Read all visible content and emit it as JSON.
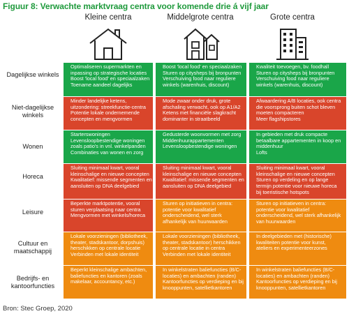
{
  "title": "Figuur 8: Verwachte marktvraag centra voor komende drie á vijf jaar",
  "columns": [
    {
      "label": "Kleine centra",
      "icon": "house-icon"
    },
    {
      "label": "Middelgrote centra",
      "icon": "townhouse-icon"
    },
    {
      "label": "Grote centra",
      "icon": "apartment-building-icon"
    }
  ],
  "rows": [
    {
      "label": "Dagelijkse winkels",
      "cells": [
        {
          "color": "green",
          "lines": [
            "Optimaliseren supermarkten en",
            "inpassing op strategische locaties",
            "Boost 'local food' en speciaalzaken",
            "Toename aandeel dagelijks"
          ]
        },
        {
          "color": "green",
          "lines": [
            "Boost 'local food' en speciaalzaken",
            "Sturen op citysheps bij bronpunten",
            "Verschuiving food naar reguliere",
            "winkels (warenhuis, discount)"
          ]
        },
        {
          "color": "green",
          "lines": [
            "Kwaliteit toevoegen, bv. foodhall",
            "Sturen op citysheps bij bronpunten",
            "Verschuiving food naar reguliere",
            "winkels (warenhuis, discount)"
          ]
        }
      ]
    },
    {
      "label": "Niet-dagelijkse winkels",
      "cells": [
        {
          "color": "red",
          "lines": [
            "Minder landelijke ketens,",
            "uitzondering: streekfunctie-centra",
            "Potentie lokale ondernemende",
            "concepten en mengvormen"
          ]
        },
        {
          "color": "red",
          "lines": [
            "Mode zwaar onder druk, grote",
            "afschaling verwacht, ook op A1/A2",
            "Ketens met financiële slagkracht",
            "dominanter in straatbeeld"
          ]
        },
        {
          "color": "red",
          "lines": [
            "Afwaardering A/B locaties, ook centra",
            "die voorsprong buiten schot bleven",
            "moeten compacteren",
            "Meer flagshipstores"
          ]
        }
      ]
    },
    {
      "label": "Wonen",
      "cells": [
        {
          "color": "green",
          "lines": [
            "Starterswoningen",
            "Levensloopbestendige woningen",
            "zoals patio's in vnl. winkelpanden",
            "Combinaties van wonen en zorg"
          ]
        },
        {
          "color": "green",
          "lines": [
            "Gedusterde woonvormen met zorg",
            "Middenhuurappartementen",
            "Levensloopbestendige woningen"
          ]
        },
        {
          "color": "green",
          "lines": [
            "In gebieden met druk compacte",
            "betaalbare appartementen in koop en",
            "middenhuur",
            "Lofts"
          ]
        }
      ]
    },
    {
      "label": "Horeca",
      "cells": [
        {
          "color": "red",
          "lines": [
            "Sluiting minimaal kwart, vooral",
            "kleinschalige en nieuwe concepten",
            "Kwalitatief: missende segmenten en",
            "aansluiten op DNA deelgebied"
          ]
        },
        {
          "color": "red",
          "lines": [
            "Sluiting minimaal kwart, vooral",
            "kleinschalige en nieuwe concepten",
            "Kwalitatief: missende segmenten en",
            "aansluiten op DNA deelgebied"
          ]
        },
        {
          "color": "red",
          "lines": [
            "Sluiting minimaal kwart, vooral",
            "kleinschalige en nieuwe concepten",
            "Sturen op verdeling en op lange",
            "termijn potentie voor nieuwe horeca",
            "bij toeristische hotspots"
          ]
        }
      ]
    },
    {
      "label": "Leisure",
      "cells": [
        {
          "color": "red",
          "lines": [
            "Beperkte marktpotentie, vooral",
            "sturen verplaatsing naar centra",
            "Mengvormen met winkels/horeca"
          ]
        },
        {
          "color": "orange",
          "lines": [
            "Sturen op initiatieven in centra:",
            "potentie voor kwalitatief",
            "onderscheidend, wel sterk",
            "afhankelijk van huurwaarden"
          ]
        },
        {
          "color": "orange",
          "lines": [
            "Sturen op initiatieven in centra:",
            "potentie voor kwalitatief",
            "onderscheidend, wel sterk afhankelijk",
            "van huurwaarden"
          ]
        }
      ]
    },
    {
      "label": "Cultuur en maatschappij",
      "cells": [
        {
          "color": "orange",
          "lines": [
            "Lokale voorzieningen (bibliotheek,",
            "theater, stadskantoor, dorpshuis)",
            "herschikken op centrale locatie",
            "Verbinden met lokale identiteit"
          ]
        },
        {
          "color": "orange",
          "lines": [
            "Lokale voorzieningen (bibliotheek,",
            "theater, stadskantoor) herschikken",
            "op centrale locatie in centra",
            "Verbinden met lokale identiteit"
          ]
        },
        {
          "color": "orange",
          "lines": [
            "In deelgebieden met (historische)",
            "kwaliteiten potentie voor kunst,",
            "ateliers en experimenteerzones"
          ]
        }
      ]
    },
    {
      "label": "Bedrijfs- en kantoorfuncties",
      "cells": [
        {
          "color": "orange",
          "lines": [
            "Beperkt kleinschalige ambachten,",
            "baliefuncties en kantoren (zoals",
            "makelaar, accountancy, etc.)"
          ]
        },
        {
          "color": "orange",
          "lines": [
            "In winkelstraten baliefuncties (B/C-",
            "locaties) en ambachten (randen)",
            "Kantoorfuncties op verdieping en bij",
            "knooppunten, satellietkantoren"
          ]
        },
        {
          "color": "orange",
          "lines": [
            "In winkelstraten baliefuncties (B/C-",
            "locaties) en ambachten (randen)",
            "Kantoorfuncties op verdieping en bij",
            "knooppunten, satellietkantoren"
          ]
        }
      ]
    }
  ],
  "source": "Bron: Stec Groep, 2020"
}
